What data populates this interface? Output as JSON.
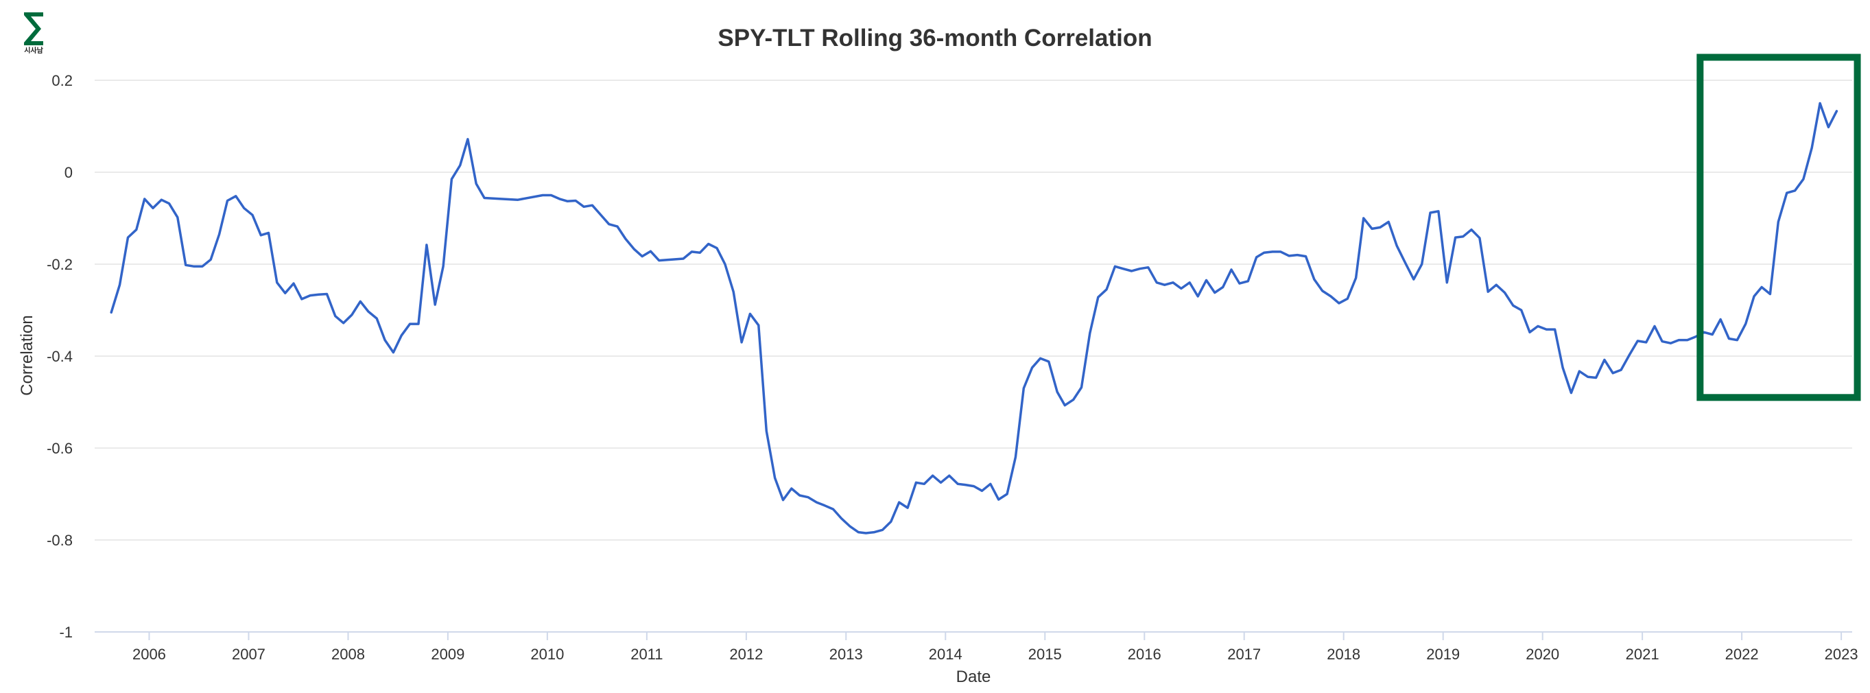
{
  "logo": {
    "text": "시사남",
    "color": "#006b3c"
  },
  "chart_data": {
    "type": "line",
    "title": "SPY-TLT Rolling 36-month Correlation",
    "xlabel": "Date",
    "ylabel": "Correlation",
    "xlim": [
      "2005-06-15",
      "2023-02-10"
    ],
    "ylim": [
      -1,
      0.2
    ],
    "yticks": [
      {
        "value": 0.2,
        "label": "0.2"
      },
      {
        "value": 0,
        "label": "0"
      },
      {
        "value": -0.2,
        "label": "-0.2"
      },
      {
        "value": -0.4,
        "label": "-0.4"
      },
      {
        "value": -0.6,
        "label": "-0.6"
      },
      {
        "value": -0.8,
        "label": "-0.8"
      },
      {
        "value": -1,
        "label": "-1"
      }
    ],
    "xticks": [
      {
        "date": "2006-01-01",
        "label": "2006"
      },
      {
        "date": "2007-01-01",
        "label": "2007"
      },
      {
        "date": "2008-01-01",
        "label": "2008"
      },
      {
        "date": "2009-01-01",
        "label": "2009"
      },
      {
        "date": "2010-01-01",
        "label": "2010"
      },
      {
        "date": "2011-01-01",
        "label": "2011"
      },
      {
        "date": "2012-01-01",
        "label": "2012"
      },
      {
        "date": "2013-01-01",
        "label": "2013"
      },
      {
        "date": "2014-01-01",
        "label": "2014"
      },
      {
        "date": "2015-01-01",
        "label": "2015"
      },
      {
        "date": "2016-01-01",
        "label": "2016"
      },
      {
        "date": "2017-01-01",
        "label": "2017"
      },
      {
        "date": "2018-01-01",
        "label": "2018"
      },
      {
        "date": "2019-01-01",
        "label": "2019"
      },
      {
        "date": "2020-01-01",
        "label": "2020"
      },
      {
        "date": "2021-01-01",
        "label": "2021"
      },
      {
        "date": "2022-01-01",
        "label": "2022"
      },
      {
        "date": "2023-01-01",
        "label": "2023"
      }
    ],
    "grid": true,
    "line_color": "#3264c8",
    "highlight_box": {
      "x_range": [
        "2021-08-01",
        "2023-03-01"
      ],
      "y_range": [
        -0.49,
        0.25
      ],
      "color": "#006b3c"
    },
    "series": [
      {
        "points": [
          [
            "2005-08",
            -0.305
          ],
          [
            "2005-09",
            -0.245
          ],
          [
            "2005-10",
            -0.142
          ],
          [
            "2005-11",
            -0.125
          ],
          [
            "2005-12",
            -0.058
          ],
          [
            "2006-01",
            -0.078
          ],
          [
            "2006-02",
            -0.06
          ],
          [
            "2006-03",
            -0.068
          ],
          [
            "2006-04",
            -0.098
          ],
          [
            "2006-05",
            -0.202
          ],
          [
            "2006-06",
            -0.205
          ],
          [
            "2006-07",
            -0.205
          ],
          [
            "2006-08",
            -0.19
          ],
          [
            "2006-09",
            -0.135
          ],
          [
            "2006-10",
            -0.062
          ],
          [
            "2006-11",
            -0.052
          ],
          [
            "2006-12",
            -0.078
          ],
          [
            "2007-01",
            -0.093
          ],
          [
            "2007-02",
            -0.137
          ],
          [
            "2007-03",
            -0.132
          ],
          [
            "2007-04",
            -0.24
          ],
          [
            "2007-05",
            -0.263
          ],
          [
            "2007-06",
            -0.242
          ],
          [
            "2007-07",
            -0.276
          ],
          [
            "2007-08",
            -0.268
          ],
          [
            "2007-09",
            -0.266
          ],
          [
            "2007-10",
            -0.265
          ],
          [
            "2007-11",
            -0.313
          ],
          [
            "2007-12",
            -0.328
          ],
          [
            "2008-01",
            -0.31
          ],
          [
            "2008-02",
            -0.281
          ],
          [
            "2008-03",
            -0.303
          ],
          [
            "2008-04",
            -0.318
          ],
          [
            "2008-05",
            -0.365
          ],
          [
            "2008-06",
            -0.392
          ],
          [
            "2008-07",
            -0.355
          ],
          [
            "2008-08",
            -0.33
          ],
          [
            "2008-09",
            -0.33
          ],
          [
            "2008-10",
            -0.158
          ],
          [
            "2008-11",
            -0.288
          ],
          [
            "2008-12",
            -0.205
          ],
          [
            "2009-01",
            -0.015
          ],
          [
            "2009-02",
            0.015
          ],
          [
            "2009-03",
            0.072
          ],
          [
            "2009-04",
            -0.025
          ],
          [
            "2009-05",
            -0.056
          ],
          [
            "2009-07",
            -0.058
          ],
          [
            "2009-09",
            -0.06
          ],
          [
            "2009-12",
            -0.05
          ],
          [
            "2010-01",
            -0.05
          ],
          [
            "2010-02",
            -0.058
          ],
          [
            "2010-03",
            -0.063
          ],
          [
            "2010-04",
            -0.062
          ],
          [
            "2010-05",
            -0.075
          ],
          [
            "2010-06",
            -0.072
          ],
          [
            "2010-07",
            -0.092
          ],
          [
            "2010-08",
            -0.113
          ],
          [
            "2010-09",
            -0.118
          ],
          [
            "2010-10",
            -0.145
          ],
          [
            "2010-11",
            -0.167
          ],
          [
            "2010-12",
            -0.183
          ],
          [
            "2011-01",
            -0.172
          ],
          [
            "2011-02",
            -0.192
          ],
          [
            "2011-05",
            -0.188
          ],
          [
            "2011-06",
            -0.173
          ],
          [
            "2011-07",
            -0.175
          ],
          [
            "2011-08",
            -0.156
          ],
          [
            "2011-09",
            -0.165
          ],
          [
            "2011-10",
            -0.2
          ],
          [
            "2011-11",
            -0.26
          ],
          [
            "2011-12",
            -0.37
          ],
          [
            "2012-01",
            -0.308
          ],
          [
            "2012-02",
            -0.333
          ],
          [
            "2012-03",
            -0.563
          ],
          [
            "2012-04",
            -0.665
          ],
          [
            "2012-05",
            -0.713
          ],
          [
            "2012-06",
            -0.688
          ],
          [
            "2012-07",
            -0.703
          ],
          [
            "2012-08",
            -0.707
          ],
          [
            "2012-09",
            -0.718
          ],
          [
            "2012-10",
            -0.725
          ],
          [
            "2012-11",
            -0.733
          ],
          [
            "2012-12",
            -0.753
          ],
          [
            "2013-01",
            -0.77
          ],
          [
            "2013-02",
            -0.783
          ],
          [
            "2013-03",
            -0.785
          ],
          [
            "2013-04",
            -0.783
          ],
          [
            "2013-05",
            -0.778
          ],
          [
            "2013-06",
            -0.76
          ],
          [
            "2013-07",
            -0.718
          ],
          [
            "2013-08",
            -0.73
          ],
          [
            "2013-09",
            -0.675
          ],
          [
            "2013-10",
            -0.678
          ],
          [
            "2013-11",
            -0.66
          ],
          [
            "2013-12",
            -0.675
          ],
          [
            "2014-01",
            -0.66
          ],
          [
            "2014-02",
            -0.678
          ],
          [
            "2014-03",
            -0.68
          ],
          [
            "2014-04",
            -0.683
          ],
          [
            "2014-05",
            -0.693
          ],
          [
            "2014-06",
            -0.678
          ],
          [
            "2014-07",
            -0.712
          ],
          [
            "2014-08",
            -0.7
          ],
          [
            "2014-09",
            -0.62
          ],
          [
            "2014-10",
            -0.47
          ],
          [
            "2014-11",
            -0.425
          ],
          [
            "2014-12",
            -0.405
          ],
          [
            "2015-01",
            -0.412
          ],
          [
            "2015-02",
            -0.478
          ],
          [
            "2015-03",
            -0.507
          ],
          [
            "2015-04",
            -0.495
          ],
          [
            "2015-05",
            -0.468
          ],
          [
            "2015-06",
            -0.35
          ],
          [
            "2015-07",
            -0.272
          ],
          [
            "2015-08",
            -0.255
          ],
          [
            "2015-09",
            -0.205
          ],
          [
            "2015-10",
            -0.21
          ],
          [
            "2015-11",
            -0.215
          ],
          [
            "2015-12",
            -0.21
          ],
          [
            "2016-01",
            -0.207
          ],
          [
            "2016-02",
            -0.24
          ],
          [
            "2016-03",
            -0.245
          ],
          [
            "2016-04",
            -0.24
          ],
          [
            "2016-05",
            -0.253
          ],
          [
            "2016-06",
            -0.24
          ],
          [
            "2016-07",
            -0.27
          ],
          [
            "2016-08",
            -0.235
          ],
          [
            "2016-09",
            -0.262
          ],
          [
            "2016-10",
            -0.25
          ],
          [
            "2016-11",
            -0.212
          ],
          [
            "2016-12",
            -0.242
          ],
          [
            "2017-01",
            -0.237
          ],
          [
            "2017-02",
            -0.185
          ],
          [
            "2017-03",
            -0.175
          ],
          [
            "2017-04",
            -0.173
          ],
          [
            "2017-05",
            -0.173
          ],
          [
            "2017-06",
            -0.182
          ],
          [
            "2017-07",
            -0.18
          ],
          [
            "2017-08",
            -0.183
          ],
          [
            "2017-09",
            -0.233
          ],
          [
            "2017-10",
            -0.258
          ],
          [
            "2017-11",
            -0.27
          ],
          [
            "2017-12",
            -0.285
          ],
          [
            "2018-01",
            -0.275
          ],
          [
            "2018-02",
            -0.23
          ],
          [
            "2018-03",
            -0.1
          ],
          [
            "2018-04",
            -0.123
          ],
          [
            "2018-05",
            -0.12
          ],
          [
            "2018-06",
            -0.108
          ],
          [
            "2018-07",
            -0.16
          ],
          [
            "2018-08",
            -0.197
          ],
          [
            "2018-09",
            -0.233
          ],
          [
            "2018-10",
            -0.2
          ],
          [
            "2018-11",
            -0.088
          ],
          [
            "2018-12",
            -0.085
          ],
          [
            "2019-01",
            -0.24
          ],
          [
            "2019-02",
            -0.142
          ],
          [
            "2019-03",
            -0.14
          ],
          [
            "2019-04",
            -0.125
          ],
          [
            "2019-05",
            -0.143
          ],
          [
            "2019-06",
            -0.26
          ],
          [
            "2019-07",
            -0.245
          ],
          [
            "2019-08",
            -0.262
          ],
          [
            "2019-09",
            -0.29
          ],
          [
            "2019-10",
            -0.3
          ],
          [
            "2019-11",
            -0.348
          ],
          [
            "2019-12",
            -0.335
          ],
          [
            "2020-01",
            -0.342
          ],
          [
            "2020-02",
            -0.342
          ],
          [
            "2020-03",
            -0.425
          ],
          [
            "2020-04",
            -0.48
          ],
          [
            "2020-05",
            -0.433
          ],
          [
            "2020-06",
            -0.445
          ],
          [
            "2020-07",
            -0.447
          ],
          [
            "2020-08",
            -0.408
          ],
          [
            "2020-09",
            -0.437
          ],
          [
            "2020-10",
            -0.43
          ],
          [
            "2020-11",
            -0.397
          ],
          [
            "2020-12",
            -0.367
          ],
          [
            "2021-01",
            -0.37
          ],
          [
            "2021-02",
            -0.335
          ],
          [
            "2021-03",
            -0.368
          ],
          [
            "2021-04",
            -0.372
          ],
          [
            "2021-05",
            -0.365
          ],
          [
            "2021-06",
            -0.365
          ],
          [
            "2021-07",
            -0.358
          ],
          [
            "2021-08",
            -0.348
          ],
          [
            "2021-09",
            -0.353
          ],
          [
            "2021-10",
            -0.32
          ],
          [
            "2021-11",
            -0.362
          ],
          [
            "2021-12",
            -0.365
          ],
          [
            "2022-01",
            -0.33
          ],
          [
            "2022-02",
            -0.27
          ],
          [
            "2022-03",
            -0.25
          ],
          [
            "2022-04",
            -0.265
          ],
          [
            "2022-05",
            -0.108
          ],
          [
            "2022-06",
            -0.045
          ],
          [
            "2022-07",
            -0.04
          ],
          [
            "2022-08",
            -0.015
          ],
          [
            "2022-09",
            0.053
          ],
          [
            "2022-10",
            0.15
          ],
          [
            "2022-11",
            0.098
          ],
          [
            "2022-12",
            0.133
          ]
        ]
      }
    ]
  }
}
